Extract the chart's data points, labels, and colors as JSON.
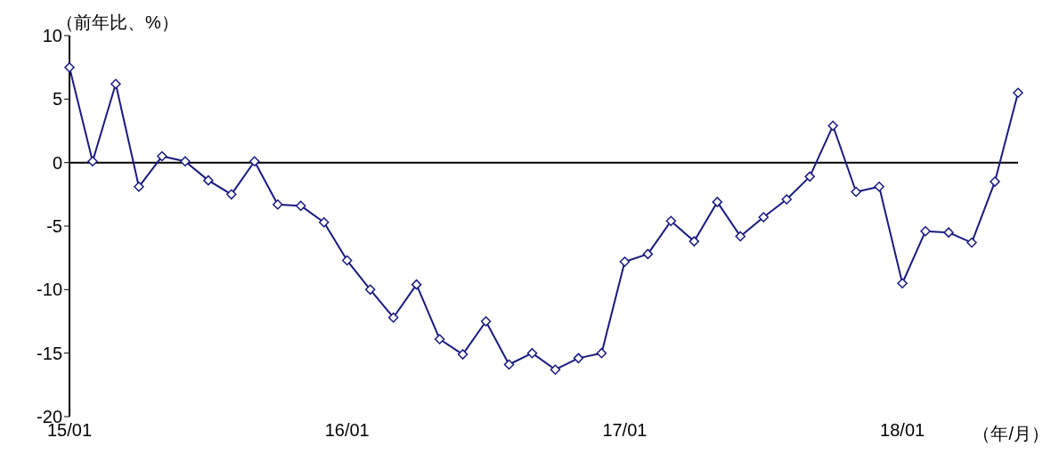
{
  "chart_data": {
    "type": "line",
    "ylabel": "（前年比、%）",
    "xlabel": "（年/月）",
    "categories": [
      "15/01",
      null,
      null,
      null,
      null,
      null,
      null,
      null,
      null,
      null,
      null,
      null,
      "16/01",
      null,
      null,
      null,
      null,
      null,
      null,
      null,
      null,
      null,
      null,
      null,
      "17/01",
      null,
      null,
      null,
      null,
      null,
      null,
      null,
      null,
      null,
      null,
      null,
      "18/01",
      null,
      null,
      null,
      null,
      null
    ],
    "series": [
      {
        "color": "#1a1a80",
        "values": [
          7.5,
          0.1,
          6.2,
          -1.9,
          0.5,
          0.1,
          -1.4,
          -2.5,
          0.1,
          -3.3,
          -3.4,
          -4.7,
          -7.7,
          -10.0,
          -12.2,
          -9.6,
          -13.9,
          -15.1,
          -12.5,
          -15.9,
          -15.0,
          -16.3,
          -15.4,
          -15.0,
          -7.8,
          -7.2,
          -4.6,
          -6.2,
          -3.1,
          -5.8,
          -4.3,
          -2.9,
          -1.1,
          2.9,
          -2.3,
          -1.9,
          -9.5,
          -5.4,
          -5.5,
          -6.3,
          -1.5,
          5.5
        ]
      }
    ],
    "ylim": [
      -20,
      10
    ],
    "yticks": [
      -20,
      -15,
      -10,
      -5,
      0,
      5,
      10
    ],
    "ref_lines": [
      {
        "axis": "y",
        "value": 0,
        "color": "#000000"
      }
    ],
    "grid": false,
    "legend": false,
    "marker": "diamond",
    "line_style": "solid"
  }
}
